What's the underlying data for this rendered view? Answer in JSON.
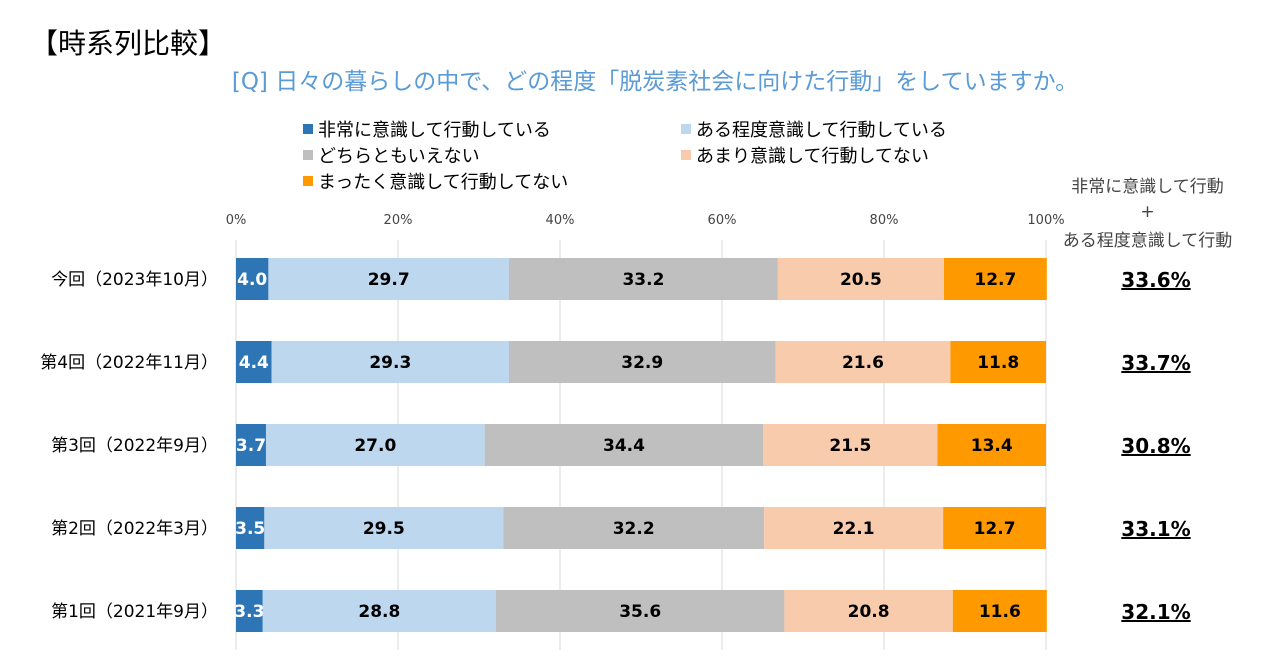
{
  "header": "【時系列比較】",
  "question": "[Q] 日々の暮らしの中で、どの程度「脱炭素社会に向けた行動」をしていますか。",
  "side_header": {
    "line1": "非常に意識して行動",
    "plus": "+",
    "line2": "ある程度意識して行動"
  },
  "chart_data": {
    "type": "bar",
    "orientation": "horizontal",
    "stacked": true,
    "percent": true,
    "xlim": [
      0,
      100
    ],
    "xticks": [
      "0%",
      "20%",
      "40%",
      "60%",
      "80%",
      "100%"
    ],
    "categories": [
      "今回（2023年10月）",
      "第4回（2022年11月）",
      "第3回（2022年9月）",
      "第2回（2022年3月）",
      "第1回（2021年9月）"
    ],
    "series": [
      {
        "name": "非常に意識して行動している",
        "color": "#2e75b6",
        "label_color": "#ffffff",
        "values": [
          4.0,
          4.4,
          3.7,
          3.5,
          3.3
        ]
      },
      {
        "name": "ある程度意識して行動している",
        "color": "#bdd7ee",
        "label_color": "#000000",
        "values": [
          29.7,
          29.3,
          27.0,
          29.5,
          28.8
        ]
      },
      {
        "name": "どちらともいえない",
        "color": "#bfbfbf",
        "label_color": "#000000",
        "values": [
          33.2,
          32.9,
          34.4,
          32.2,
          35.6
        ]
      },
      {
        "name": "あまり意識して行動してない",
        "color": "#f8cbad",
        "label_color": "#000000",
        "values": [
          20.5,
          21.6,
          21.5,
          22.1,
          20.8
        ]
      },
      {
        "name": "まったく意識して行動してない",
        "color": "#ff9900",
        "label_color": "#000000",
        "values": [
          12.7,
          11.8,
          13.4,
          12.7,
          11.6
        ]
      }
    ],
    "sum_labels": [
      "33.6%",
      "33.7%",
      "30.8%",
      "33.1%",
      "32.1%"
    ]
  }
}
